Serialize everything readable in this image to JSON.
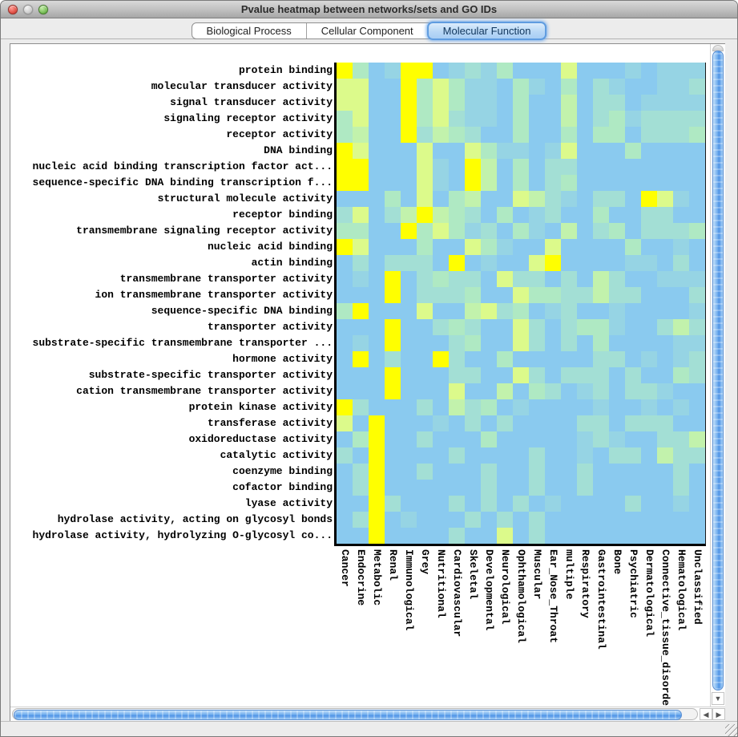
{
  "window": {
    "title": "Pvalue heatmap between networks/sets and GO IDs",
    "traffic_lights": [
      {
        "name": "close",
        "color": "#e2544a"
      },
      {
        "name": "minimize",
        "color": "#cfcfcf"
      },
      {
        "name": "zoom",
        "color": "#7cc05b"
      }
    ]
  },
  "tabs": [
    {
      "label": "Biological Process",
      "selected": false
    },
    {
      "label": "Cellular Component",
      "selected": false
    },
    {
      "label": "Molecular Function",
      "selected": true
    }
  ],
  "icons": {
    "scroll_down": "▼",
    "scroll_left": "◀",
    "scroll_right": "▶"
  },
  "chart_data": {
    "type": "heatmap",
    "title": "Pvalue heatmap between networks/sets and GO IDs",
    "rows": [
      "protein binding",
      "molecular transducer activity",
      "signal transducer activity",
      "signaling receptor activity",
      "receptor activity",
      "DNA binding",
      "nucleic acid binding transcription factor act...",
      "sequence-specific DNA binding transcription f...",
      "structural molecule activity",
      "receptor binding",
      "transmembrane signaling receptor activity",
      "nucleic acid binding",
      "actin binding",
      "transmembrane transporter activity",
      "ion transmembrane transporter activity",
      "sequence-specific DNA binding",
      "transporter activity",
      "substrate-specific transmembrane transporter ...",
      "hormone activity",
      "substrate-specific transporter activity",
      "cation transmembrane transporter activity",
      "protein kinase activity",
      "transferase activity",
      "oxidoreductase activity",
      "catalytic activity",
      "coenzyme binding",
      "cofactor binding",
      "lyase activity",
      "hydrolase activity, acting on glycosyl bonds",
      "hydrolase activity, hydrolyzing O-glycosyl co..."
    ],
    "columns": [
      "Cancer",
      "Endocrine",
      "Metabolic",
      "Renal",
      "Immunological",
      "Grey",
      "Nutritional",
      "Cardiovascular",
      "Skeletal",
      "Developmental",
      "Neurological",
      "Ophthamological",
      "Muscular",
      "Ear_Nose_Throat",
      "multiple",
      "Respiratory",
      "Gastrointestinal",
      "Bone",
      "Psychiatric",
      "Dermatological",
      "Connective_tissue_disorder",
      "Hematological",
      "Unclassified"
    ],
    "level_colors": [
      "#8ACAEF",
      "#96D4E4",
      "#A3DFD5",
      "#AFE9C3",
      "#C2F2AC",
      "#DCFA8B",
      "#FFFF00"
    ],
    "matrix": [
      "63016601213000500010111",
      "55006353110310302100112",
      "55006353110300402201111",
      "35006352110300402312222",
      "34006243200300303302223",
      "65000500531101500030000",
      "66000510640302200000000",
      "66000510640302300000000",
      "00030503400542102206510",
      "25024643203012003002200",
      "33006353120310402302223",
      "65000300531005000030010",
      "02022206010056000011020",
      "01060232205220204200111",
      "00060222300533224220002",
      "36000500452301200100001",
      "00060023200520233100242",
      "01060002300520203000011",
      "06020062003000002201012",
      "00060002200520222020032",
      "00060005004032012022100",
      "62000204230100001001010",
      "50600010202000022022200",
      "03600200030000012100224",
      "20600002000020010220422",
      "02600200020020020000020",
      "02600000020020020000020",
      "00620002020201000020010",
      "02601000202020000000000",
      "00600002005020000000000"
    ]
  }
}
